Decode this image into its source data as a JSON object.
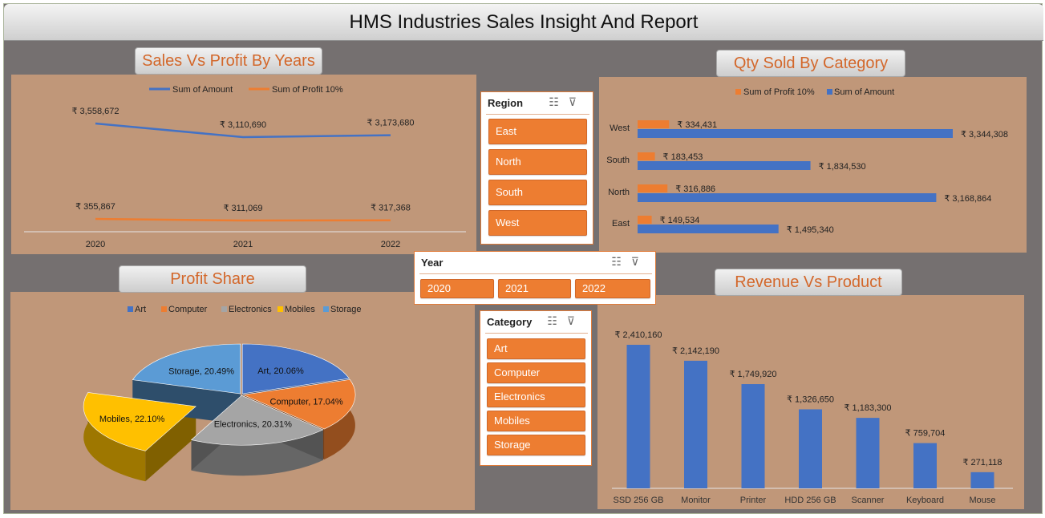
{
  "dashboard": {
    "title": "HMS Industries Sales Insight And Report"
  },
  "colors": {
    "orange": "#ed7d31",
    "blue": "#4472c4",
    "gray": "#a5a5a5",
    "gold": "#ffc000",
    "lightblue": "#5b9bd5",
    "panel": "#c09779",
    "background": "#757070"
  },
  "panels": {
    "sales_profit": {
      "title": "Sales Vs Profit By Years"
    },
    "qty_category": {
      "title": "Qty Sold By Category"
    },
    "profit_share": {
      "title": "Profit Share"
    },
    "revenue_product": {
      "title": "Revenue Vs Product"
    }
  },
  "slicers": {
    "region": {
      "title": "Region",
      "items": [
        "East",
        "North",
        "South",
        "West"
      ]
    },
    "year": {
      "title": "Year",
      "items": [
        "2020",
        "2021",
        "2022"
      ]
    },
    "category": {
      "title": "Category",
      "items": [
        "Art",
        "Computer",
        "Electronics",
        "Mobiles",
        "Storage"
      ]
    }
  },
  "chart_data": [
    {
      "id": "sales_vs_profit",
      "type": "line",
      "categories": [
        "2020",
        "2021",
        "2022"
      ],
      "series": [
        {
          "name": "Sum of Amount",
          "values": [
            3558672,
            3110690,
            3173680
          ],
          "labels": [
            "₹ 3,558,672",
            "₹ 3,110,690",
            "₹ 3,173,680"
          ],
          "color": "#4472c4"
        },
        {
          "name": "Sum of Profit 10%",
          "values": [
            355867,
            311069,
            317368
          ],
          "labels": [
            "₹ 355,867",
            "₹ 311,069",
            "₹ 317,368"
          ],
          "color": "#ed7d31"
        }
      ],
      "legend": "top",
      "grid": false
    },
    {
      "id": "qty_sold_by_category",
      "type": "bar",
      "orientation": "horizontal",
      "categories": [
        "West",
        "South",
        "North",
        "East"
      ],
      "series": [
        {
          "name": "Sum of Profit 10%",
          "values": [
            334431,
            183453,
            316886,
            149534
          ],
          "labels": [
            "₹ 334,431",
            "₹ 183,453",
            "₹ 316,886",
            "₹ 149,534"
          ],
          "color": "#ed7d31"
        },
        {
          "name": "Sum of Amount",
          "values": [
            3344308,
            1834530,
            3168864,
            1495340
          ],
          "labels": [
            "₹ 3,344,308",
            "₹ 1,834,530",
            "₹ 3,168,864",
            "₹ 1,495,340"
          ],
          "color": "#4472c4"
        }
      ],
      "legend": "top",
      "grid": false
    },
    {
      "id": "profit_share",
      "type": "pie",
      "style": "3d-exploded",
      "categories": [
        "Art",
        "Computer",
        "Electronics",
        "Mobiles",
        "Storage"
      ],
      "values": [
        20.06,
        17.04,
        20.31,
        22.1,
        20.49
      ],
      "labels": [
        "Art, 20.06%",
        "Computer, 17.04%",
        "Electronics, 20.31%",
        "Mobiles, 22.10%",
        "Storage, 20.49%"
      ],
      "colors": [
        "#4472c4",
        "#ed7d31",
        "#a5a5a5",
        "#ffc000",
        "#5b9bd5"
      ],
      "legend": "top"
    },
    {
      "id": "revenue_vs_product",
      "type": "bar",
      "orientation": "vertical",
      "categories": [
        "SSD 256 GB",
        "Monitor",
        "Printer",
        "HDD 256 GB",
        "Scanner",
        "Keyboard",
        "Mouse"
      ],
      "values": [
        2410160,
        2142190,
        1749920,
        1326650,
        1183300,
        759704,
        271118
      ],
      "labels": [
        "₹ 2,410,160",
        "₹ 2,142,190",
        "₹ 1,749,920",
        "₹ 1,326,650",
        "₹ 1,183,300",
        "₹ 759,704",
        "₹ 271,118"
      ],
      "color": "#4472c4",
      "grid": false
    }
  ]
}
